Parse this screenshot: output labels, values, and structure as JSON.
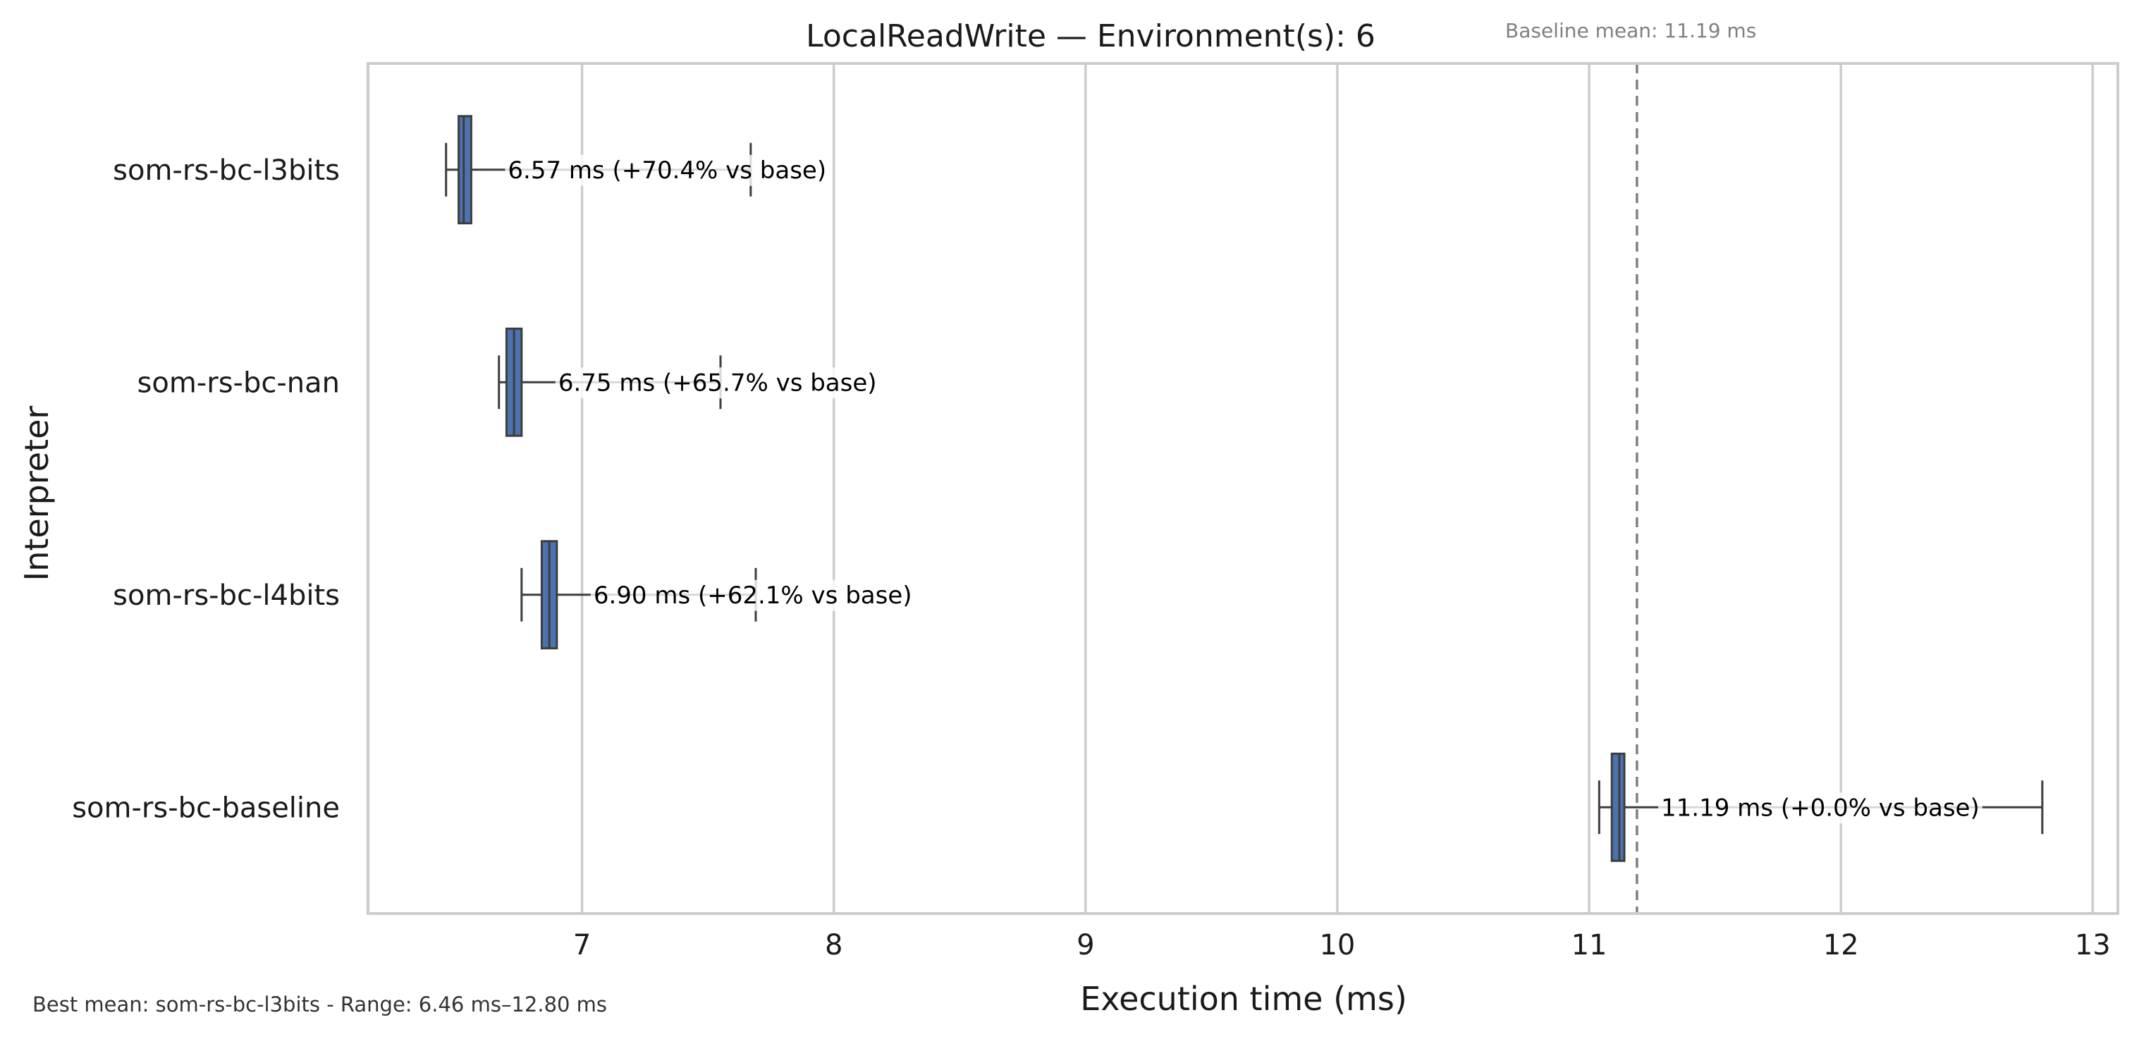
{
  "chart_data": {
    "type": "boxplot",
    "orientation": "horizontal",
    "title": "LocalReadWrite — Environment(s): 6",
    "xlabel": "Execution time (ms)",
    "ylabel": "Interpreter",
    "xlim": [
      6.15,
      13.1
    ],
    "x_ticks": [
      7,
      8,
      9,
      10,
      11,
      12,
      13
    ],
    "grid": "vertical",
    "box_color": "#4c72b0",
    "baseline": {
      "value": 11.19,
      "label": "Baseline mean: 11.19 ms",
      "color": "#808080"
    },
    "categories": [
      "som-rs-bc-l3bits",
      "som-rs-bc-nan",
      "som-rs-bc-l4bits",
      "som-rs-bc-baseline"
    ],
    "series": [
      {
        "label": "som-rs-bc-l3bits",
        "whisker_low": 6.46,
        "q1": 6.51,
        "median": 6.53,
        "q3": 6.56,
        "whisker_high": 7.67,
        "annotation": "6.57 ms  (+70.4% vs base)"
      },
      {
        "label": "som-rs-bc-nan",
        "whisker_low": 6.67,
        "q1": 6.7,
        "median": 6.73,
        "q3": 6.76,
        "whisker_high": 7.55,
        "annotation": "6.75 ms  (+65.7% vs base)"
      },
      {
        "label": "som-rs-bc-l4bits",
        "whisker_low": 6.76,
        "q1": 6.84,
        "median": 6.87,
        "q3": 6.9,
        "whisker_high": 7.69,
        "annotation": "6.90 ms  (+62.1% vs base)"
      },
      {
        "label": "som-rs-bc-baseline",
        "whisker_low": 11.04,
        "q1": 11.09,
        "median": 11.12,
        "q3": 11.14,
        "whisker_high": 12.8,
        "annotation": "11.19 ms  (+0.0% vs base)"
      }
    ],
    "footer": "Best mean: som-rs-bc-l3bits - Range: 6.46 ms–12.80 ms"
  }
}
